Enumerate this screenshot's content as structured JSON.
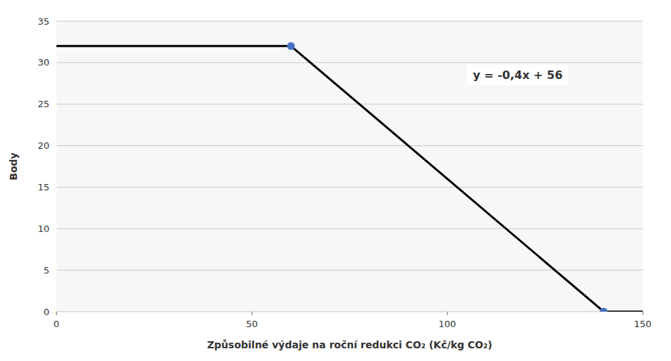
{
  "chart_data": {
    "type": "line",
    "xlabel": "Způsobilné výdaje na roční redukci CO₂ (Kč/kg CO₂)",
    "ylabel": "Body",
    "series": [
      {
        "type": "line",
        "color": "#000000",
        "line_style": "solid",
        "x": [
          0,
          60,
          140,
          150
        ],
        "values": [
          32,
          32,
          0,
          0
        ]
      },
      {
        "type": "scatter",
        "color": "#4472c4",
        "marker": "circle",
        "x": [
          60,
          140
        ],
        "values": [
          32,
          0
        ]
      }
    ],
    "annotations": [
      {
        "text": "y = -0,4x + 56",
        "x": 118,
        "y": 28.5
      }
    ],
    "xlim": [
      0,
      150
    ],
    "ylim": [
      0,
      35
    ],
    "xticks": [
      0,
      50,
      100,
      150
    ],
    "yticks": [
      0,
      5,
      10,
      15,
      20,
      25,
      30,
      35
    ],
    "grid": "y"
  }
}
